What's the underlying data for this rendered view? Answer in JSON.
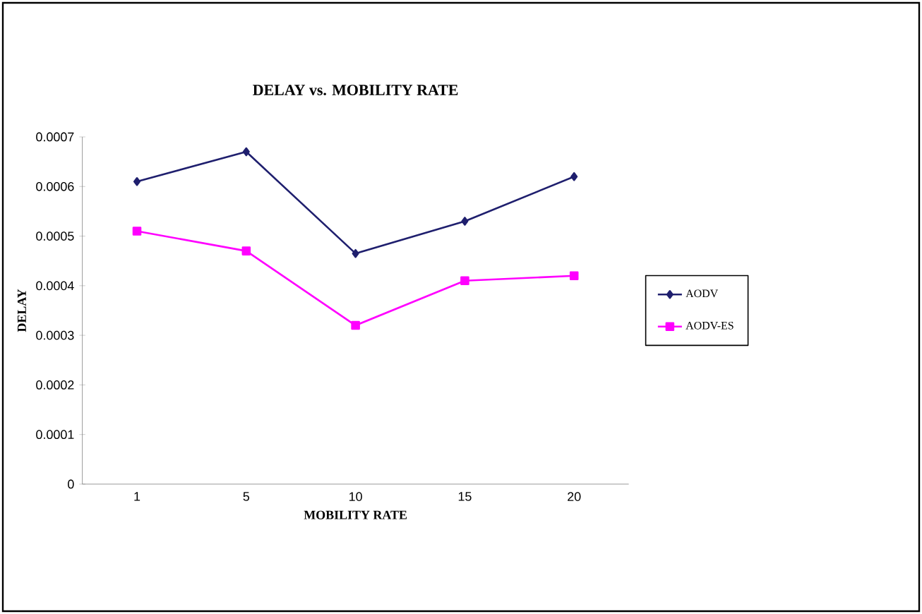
{
  "chart_data": {
    "type": "line",
    "title": "DELAY vs. MOBILITY RATE",
    "xlabel": "MOBILITY RATE",
    "ylabel": "DELAY",
    "categories": [
      "1",
      "5",
      "10",
      "15",
      "20"
    ],
    "series": [
      {
        "name": "AODV",
        "color": "#1f1f6e",
        "marker": "diamond",
        "values": [
          0.00061,
          0.00067,
          0.000465,
          0.00053,
          0.00062
        ]
      },
      {
        "name": "AODV-ES",
        "color": "#ff00ff",
        "marker": "square",
        "values": [
          0.00051,
          0.00047,
          0.00032,
          0.00041,
          0.00042
        ]
      }
    ],
    "ylim": [
      0,
      0.0007
    ],
    "yticks": [
      0,
      0.0001,
      0.0002,
      0.0003,
      0.0004,
      0.0005,
      0.0006,
      0.0007
    ],
    "legend": "right",
    "line_style": "solid"
  }
}
